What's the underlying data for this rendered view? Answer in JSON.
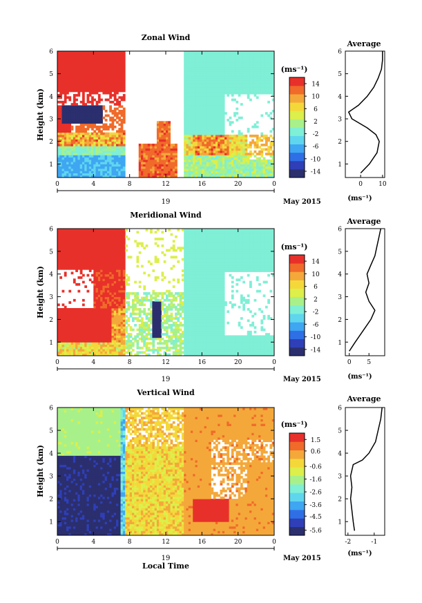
{
  "figure": {
    "date_label": "May 2015",
    "xlabel_bottom": "Local Time",
    "avg_title": "Average",
    "unit_label": "(ms⁻¹)"
  },
  "chart_data": [
    {
      "type": "heatmap",
      "title": "Zonal Wind",
      "ylabel": "Height (km)",
      "xlabel": "Local Time",
      "x_ticks": [
        "0",
        "4",
        "8",
        "12",
        "16",
        "20",
        "0"
      ],
      "day_label": "19",
      "y_ticks": [
        1,
        2,
        3,
        4,
        5,
        6
      ],
      "xlim": [
        0,
        24
      ],
      "ylim": [
        0.4,
        6
      ],
      "colorbar": {
        "unit": "(ms⁻¹)",
        "ticks": [
          14,
          10,
          6,
          2,
          -2,
          -6,
          -10,
          -14
        ],
        "range": [
          -16,
          16
        ]
      },
      "field_description": [
        {
          "t": [
            0,
            7.5
          ],
          "z": [
            4.2,
            6
          ],
          "value": 16
        },
        {
          "t": [
            0,
            1.5
          ],
          "z": [
            2.4,
            3.6
          ],
          "value": 14
        },
        {
          "t": [
            0.5,
            5
          ],
          "z": [
            2.8,
            3.6
          ],
          "value": -14
        },
        {
          "t": [
            0,
            8
          ],
          "z": [
            0.4,
            1.4
          ],
          "value": -4
        },
        {
          "t": [
            9,
            13
          ],
          "z": [
            0.8,
            1.8
          ],
          "value": 14
        },
        {
          "t": [
            14,
            24
          ],
          "z": [
            2.3,
            6
          ],
          "value": -1
        },
        {
          "t": [
            15,
            19
          ],
          "z": [
            1.4,
            2.4
          ],
          "value": 10
        }
      ],
      "average_profile": {
        "xlim": [
          -7,
          11
        ],
        "x_ticks": [
          0,
          10
        ],
        "z": [
          0.6,
          1.0,
          1.5,
          2.0,
          2.3,
          2.6,
          3.0,
          3.3,
          3.6,
          4.0,
          4.4,
          4.8,
          5.2,
          5.6,
          6.0
        ],
        "u": [
          0.0,
          4.0,
          7.5,
          8.5,
          7.0,
          3.0,
          -4.0,
          -5.5,
          -1.0,
          3.0,
          6.0,
          8.0,
          9.5,
          10.0,
          10.0
        ]
      }
    },
    {
      "type": "heatmap",
      "title": "Meridional Wind",
      "ylabel": "Height (km)",
      "xlabel": "Local Time",
      "x_ticks": [
        "0",
        "4",
        "8",
        "12",
        "16",
        "20",
        "0"
      ],
      "day_label": "19",
      "y_ticks": [
        1,
        2,
        3,
        4,
        5,
        6
      ],
      "xlim": [
        0,
        24
      ],
      "ylim": [
        0.4,
        6
      ],
      "colorbar": {
        "unit": "(ms⁻¹)",
        "ticks": [
          14,
          10,
          6,
          2,
          -2,
          -6,
          -10,
          -14
        ],
        "range": [
          -16,
          16
        ]
      },
      "field_description": [
        {
          "t": [
            0,
            7.5
          ],
          "z": [
            4.2,
            6
          ],
          "value": 16
        },
        {
          "t": [
            0,
            6
          ],
          "z": [
            1.0,
            2.4
          ],
          "value": 14
        },
        {
          "t": [
            10.5,
            11.5
          ],
          "z": [
            1.2,
            2.8
          ],
          "value": -14
        },
        {
          "t": [
            14,
            24
          ],
          "z": [
            1.0,
            6
          ],
          "value": -1
        }
      ],
      "average_profile": {
        "xlim": [
          -1,
          9
        ],
        "x_ticks": [
          0,
          5
        ],
        "z": [
          0.6,
          1.0,
          1.5,
          2.0,
          2.4,
          2.8,
          3.2,
          3.6,
          4.0,
          4.4,
          4.8,
          5.2,
          5.6,
          6.0
        ],
        "v": [
          0.0,
          1.5,
          3.5,
          5.5,
          6.5,
          5.0,
          4.2,
          5.0,
          4.5,
          5.5,
          6.5,
          7.0,
          7.5,
          8.0
        ]
      }
    },
    {
      "type": "heatmap",
      "title": "Vertical Wind",
      "ylabel": "Height (km)",
      "xlabel": "Local Time",
      "x_ticks": [
        "0",
        "4",
        "8",
        "12",
        "16",
        "20",
        "0"
      ],
      "day_label": "19",
      "y_ticks": [
        1,
        2,
        3,
        4,
        5,
        6
      ],
      "xlim": [
        0,
        24
      ],
      "ylim": [
        0.4,
        6
      ],
      "colorbar": {
        "unit": "(ms⁻¹)",
        "ticks": [
          1.5,
          0.6,
          -0.6,
          -1.6,
          -2.6,
          -3.6,
          -4.5,
          -5.6
        ],
        "range": [
          -6,
          2
        ]
      },
      "field_description": [
        {
          "t": [
            0,
            7
          ],
          "z": [
            3.9,
            6
          ],
          "value": -1.6
        },
        {
          "t": [
            0,
            7
          ],
          "z": [
            0.4,
            3.9
          ],
          "value": -6
        },
        {
          "t": [
            7,
            14
          ],
          "z": [
            0.4,
            6
          ],
          "value": -0.3
        },
        {
          "t": [
            14,
            24
          ],
          "z": [
            0.4,
            6
          ],
          "value": 0.3
        },
        {
          "t": [
            15,
            19
          ],
          "z": [
            1.0,
            2.0
          ],
          "value": 1.5
        }
      ],
      "average_profile": {
        "xlim": [
          -2.1,
          -0.6
        ],
        "x_ticks": [
          -2,
          -1
        ],
        "z": [
          0.6,
          1.0,
          1.5,
          2.0,
          2.5,
          3.0,
          3.5,
          3.7,
          4.0,
          4.5,
          5.0,
          5.5,
          6.0
        ],
        "w": [
          -1.75,
          -1.8,
          -1.85,
          -1.9,
          -1.85,
          -1.9,
          -1.8,
          -1.45,
          -1.2,
          -0.95,
          -0.85,
          -0.75,
          -0.7
        ]
      }
    }
  ]
}
